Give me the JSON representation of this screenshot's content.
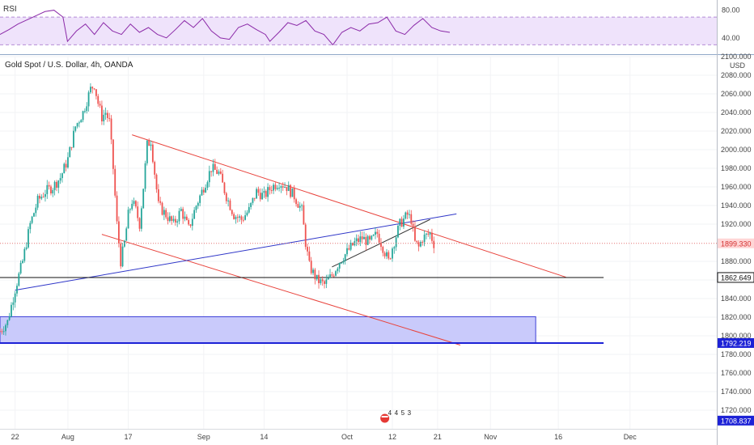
{
  "chart_data": [
    {
      "type": "line",
      "title": "RSI",
      "ylim": [
        20,
        90
      ],
      "y_ticks": [
        "80.00",
        "40.00"
      ],
      "band": [
        30,
        70
      ],
      "colors": {
        "line": "#8b2aa8",
        "band": "#efe3fb"
      },
      "x": [
        0,
        4,
        8,
        12,
        16,
        20,
        24,
        28,
        30,
        34,
        38,
        42,
        46,
        50,
        54,
        58,
        62,
        66,
        70,
        74,
        78,
        82,
        86,
        90,
        94,
        98,
        102,
        106,
        110,
        114,
        118,
        120,
        124,
        128,
        132,
        136,
        140,
        144,
        148,
        152,
        156,
        160,
        164,
        168,
        172,
        176,
        180,
        184,
        188,
        192,
        196,
        200
      ],
      "values": [
        45,
        52,
        60,
        66,
        72,
        78,
        80,
        70,
        35,
        50,
        60,
        45,
        62,
        50,
        45,
        60,
        48,
        55,
        45,
        40,
        52,
        65,
        55,
        68,
        50,
        40,
        38,
        55,
        60,
        52,
        45,
        35,
        48,
        62,
        58,
        65,
        50,
        45,
        30,
        48,
        55,
        50,
        60,
        62,
        70,
        50,
        45,
        58,
        68,
        55,
        50,
        48
      ]
    },
    {
      "type": "candlestick",
      "title": "Gold Spot / U.S. Dollar, 4h, OANDA",
      "ylabel": "USD",
      "ylim": [
        1700,
        2100
      ],
      "y_ticks": [
        "2100.000",
        "2080.000",
        "2060.000",
        "2040.000",
        "2020.000",
        "2000.000",
        "1980.000",
        "1960.000",
        "1940.000",
        "1920.000",
        "1880.000",
        "1860.000",
        "1840.000",
        "1820.000",
        "1800.000",
        "1780.000",
        "1760.000",
        "1740.000",
        "1720.000"
      ],
      "x_ticks": [
        {
          "label": "22",
          "x": 4
        },
        {
          "label": "Aug",
          "x": 18
        },
        {
          "label": "17",
          "x": 34
        },
        {
          "label": "Sep",
          "x": 54
        },
        {
          "label": "14",
          "x": 70
        },
        {
          "label": "Oct",
          "x": 92
        },
        {
          "label": "12",
          "x": 104
        },
        {
          "label": "21",
          "x": 116
        },
        {
          "label": "Nov",
          "x": 130
        },
        {
          "label": "16",
          "x": 148
        },
        {
          "label": "Dec",
          "x": 167
        }
      ],
      "x_max": 190,
      "price_labels": [
        {
          "text": "1899.330",
          "value": 1899.33,
          "fill": "#ffd6d6",
          "color": "#d32f2f"
        },
        {
          "text": "1862.649",
          "value": 1862.649,
          "fill": "#ffffff",
          "color": "#111111",
          "border": "#111111"
        },
        {
          "text": "1792.219",
          "value": 1792.219,
          "fill": "#1d22d6",
          "color": "#ffffff"
        },
        {
          "text": "1708.837",
          "value": 1708.837,
          "fill": "#1d22d6",
          "color": "#ffffff"
        }
      ],
      "close_points": [
        [
          0,
          1805
        ],
        [
          2,
          1815
        ],
        [
          4,
          1850
        ],
        [
          6,
          1880
        ],
        [
          8,
          1920
        ],
        [
          10,
          1945
        ],
        [
          12,
          1955
        ],
        [
          14,
          1960
        ],
        [
          16,
          1970
        ],
        [
          18,
          1990
        ],
        [
          20,
          2025
        ],
        [
          22,
          2040
        ],
        [
          24,
          2065
        ],
        [
          25,
          2070
        ],
        [
          26,
          2050
        ],
        [
          27,
          2035
        ],
        [
          28,
          2040
        ],
        [
          29,
          2030
        ],
        [
          30,
          1980
        ],
        [
          31,
          1920
        ],
        [
          32,
          1880
        ],
        [
          33,
          1900
        ],
        [
          34,
          1930
        ],
        [
          35,
          1945
        ],
        [
          36,
          1935
        ],
        [
          37,
          1920
        ],
        [
          38,
          1960
        ],
        [
          39,
          2005
        ],
        [
          40,
          2010
        ],
        [
          41,
          1975
        ],
        [
          42,
          1940
        ],
        [
          44,
          1930
        ],
        [
          46,
          1920
        ],
        [
          48,
          1935
        ],
        [
          50,
          1915
        ],
        [
          52,
          1940
        ],
        [
          54,
          1960
        ],
        [
          56,
          1980
        ],
        [
          58,
          1975
        ],
        [
          60,
          1950
        ],
        [
          62,
          1930
        ],
        [
          64,
          1925
        ],
        [
          66,
          1935
        ],
        [
          68,
          1955
        ],
        [
          70,
          1950
        ],
        [
          72,
          1960
        ],
        [
          74,
          1965
        ],
        [
          76,
          1960
        ],
        [
          78,
          1950
        ],
        [
          80,
          1935
        ],
        [
          81,
          1900
        ],
        [
          82,
          1875
        ],
        [
          84,
          1860
        ],
        [
          86,
          1855
        ],
        [
          88,
          1865
        ],
        [
          90,
          1880
        ],
        [
          92,
          1890
        ],
        [
          94,
          1900
        ],
        [
          96,
          1905
        ],
        [
          98,
          1900
        ],
        [
          100,
          1910
        ],
        [
          102,
          1890
        ],
        [
          103,
          1880
        ],
        [
          104,
          1895
        ],
        [
          106,
          1920
        ],
        [
          108,
          1930
        ],
        [
          109,
          1925
        ],
        [
          110,
          1900
        ],
        [
          111,
          1895
        ],
        [
          112,
          1905
        ],
        [
          114,
          1910
        ],
        [
          115,
          1899
        ]
      ],
      "zone": {
        "x1": 0,
        "x2": 142,
        "y1": 1820.5,
        "y2": 1792.219,
        "fill": "#c9cafb",
        "border": "#3d3fd6"
      },
      "trendlines": [
        {
          "x1": 35,
          "y1": 2016,
          "x2": 150,
          "y2": 1863,
          "color": "#e8423b"
        },
        {
          "x1": 27,
          "y1": 1909,
          "x2": 122,
          "y2": 1790,
          "color": "#e8423b"
        },
        {
          "x1": 4,
          "y1": 1849,
          "x2": 121,
          "y2": 1931,
          "color": "#2f36c8"
        },
        {
          "x1": 88,
          "y1": 1874,
          "x2": 114,
          "y2": 1925,
          "color": "#333333"
        },
        {
          "x1": 0,
          "y1": 1862.649,
          "x2": 160,
          "y2": 1862.649,
          "color": "#111111"
        },
        {
          "x1": 0,
          "y1": 1792.219,
          "x2": 160,
          "y2": 1792.219,
          "color": "#1d22d6"
        }
      ],
      "events": {
        "labels": [
          "4",
          "4",
          "5",
          "3"
        ],
        "x": 102
      },
      "colors": {
        "up": "#26a69a",
        "down": "#ef5350",
        "grid": "#f2f3f5"
      }
    }
  ]
}
